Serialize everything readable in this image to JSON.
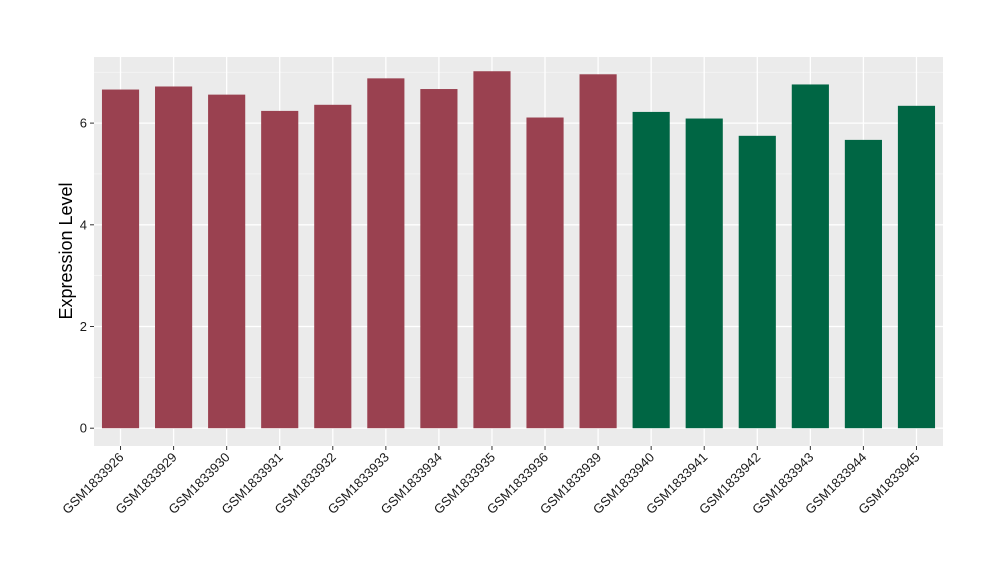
{
  "chart_data": {
    "type": "bar",
    "xlabel": "",
    "ylabel": "Expression Level",
    "ylim": [
      -0.35,
      7.3
    ],
    "yticks": [
      0,
      2,
      4,
      6
    ],
    "grid": true,
    "background": "#ebebeb",
    "colors": {
      "group1": "#9a4150",
      "group2": "#006644"
    },
    "categories": [
      "GSM1833926",
      "GSM1833929",
      "GSM1833930",
      "GSM1833931",
      "GSM1833932",
      "GSM1833933",
      "GSM1833934",
      "GSM1833935",
      "GSM1833936",
      "GSM1833939",
      "GSM1833940",
      "GSM1833941",
      "GSM1833942",
      "GSM1833943",
      "GSM1833944",
      "GSM1833945"
    ],
    "values": [
      6.66,
      6.72,
      6.56,
      6.24,
      6.36,
      6.88,
      6.67,
      7.02,
      6.11,
      6.96,
      6.22,
      6.09,
      5.75,
      6.76,
      5.67,
      6.34
    ],
    "groups": [
      1,
      1,
      1,
      1,
      1,
      1,
      1,
      1,
      1,
      1,
      2,
      2,
      2,
      2,
      2,
      2
    ]
  }
}
